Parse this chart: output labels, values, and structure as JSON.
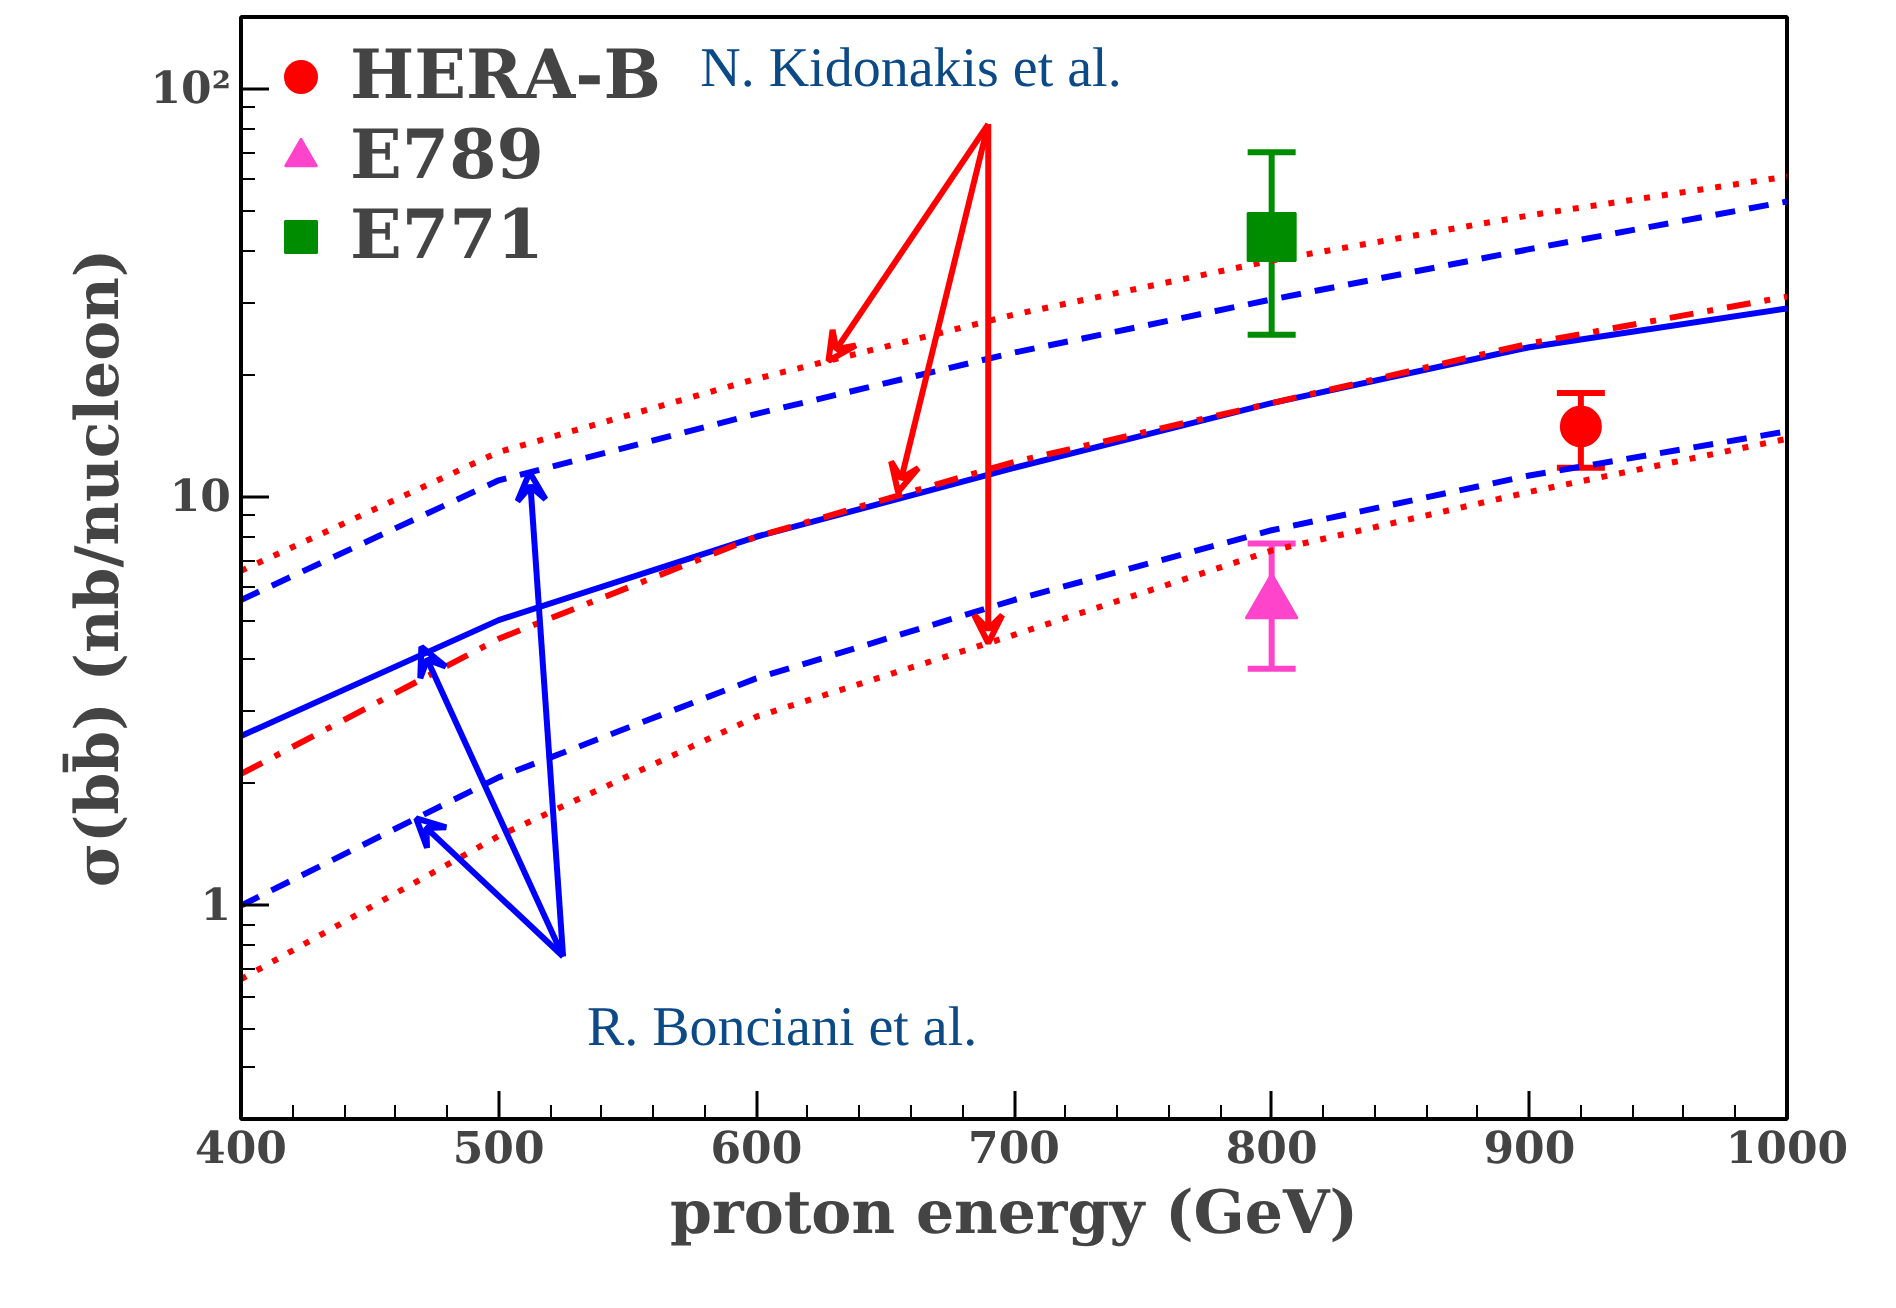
{
  "chart_data": {
    "type": "line",
    "xlabel": "proton energy (GeV)",
    "ylabel": "σ(bb̄) (nb/nucleon)",
    "log": "y",
    "grid": false,
    "legend": "top left",
    "xlim": [
      400,
      1000
    ],
    "xticks": [
      400,
      500,
      600,
      700,
      800,
      900,
      1000
    ],
    "ylim": [
      0.3,
      150
    ],
    "yticks": [
      1,
      10,
      {
        "value": 100,
        "label": "10²"
      }
    ],
    "annotations": [
      {
        "text": "N. Kidonakis et al.",
        "x": 655,
        "y": 10.3
      },
      {
        "text": "R. Bonciani et al.",
        "x": 470,
        "y": 4.3
      }
    ],
    "series": [
      {
        "color": "#0000ff",
        "line_style": "solid",
        "marker": "none",
        "x": [
          400,
          500,
          600,
          700,
          800,
          900,
          1000
        ],
        "values": [
          2.6,
          5.0,
          8.0,
          11.8,
          17,
          23.3,
          29
        ]
      },
      {
        "color": "#0000ff",
        "line_style": "dashed",
        "marker": "none",
        "x": [
          400,
          500,
          600,
          700,
          800,
          900,
          1000
        ],
        "values": [
          5.6,
          11,
          16,
          22.6,
          30.5,
          40.5,
          53
        ]
      },
      {
        "color": "#0000ff",
        "line_style": "dashed",
        "marker": "none",
        "x": [
          400,
          500,
          600,
          700,
          800,
          900,
          1000
        ],
        "values": [
          1.0,
          2.06,
          3.6,
          5.6,
          8.3,
          11.3,
          14.5
        ]
      },
      {
        "color": "#ff0000",
        "line_style": "dashdot",
        "marker": "none",
        "x": [
          400,
          500,
          600,
          700,
          800,
          900,
          1000
        ],
        "values": [
          2.1,
          4.5,
          8.0,
          12.2,
          17,
          23.8,
          31
        ]
      },
      {
        "color": "#ff0000",
        "line_style": "dotted",
        "marker": "none",
        "x": [
          400,
          500,
          600,
          700,
          800,
          900,
          1000
        ],
        "values": [
          6.6,
          12.9,
          19.5,
          28,
          38,
          49,
          61
        ]
      },
      {
        "color": "#ff0000",
        "line_style": "dotted",
        "marker": "none",
        "x": [
          400,
          500,
          600,
          700,
          800,
          900,
          1000
        ],
        "values": [
          0.66,
          1.48,
          2.9,
          4.6,
          7.4,
          10.3,
          13.9
        ]
      },
      {
        "type": "scatter",
        "name": "HERA-B",
        "color": "#ff0000",
        "marker": "circle",
        "x": [
          920
        ],
        "values": [
          14.9
        ],
        "errors": [
          [
            11.8,
            18
          ]
        ]
      },
      {
        "type": "scatter",
        "name": "E789",
        "color": "#ff44cc",
        "marker": "triangle",
        "x": [
          800
        ],
        "values": [
          5.5
        ],
        "errors": [
          [
            3.8,
            7.7
          ]
        ]
      },
      {
        "type": "scatter",
        "name": "E771",
        "color": "#008c00",
        "marker": "square",
        "x": [
          800
        ],
        "values": [
          43.4
        ],
        "errors": [
          [
            25,
            70
          ]
        ]
      }
    ]
  }
}
